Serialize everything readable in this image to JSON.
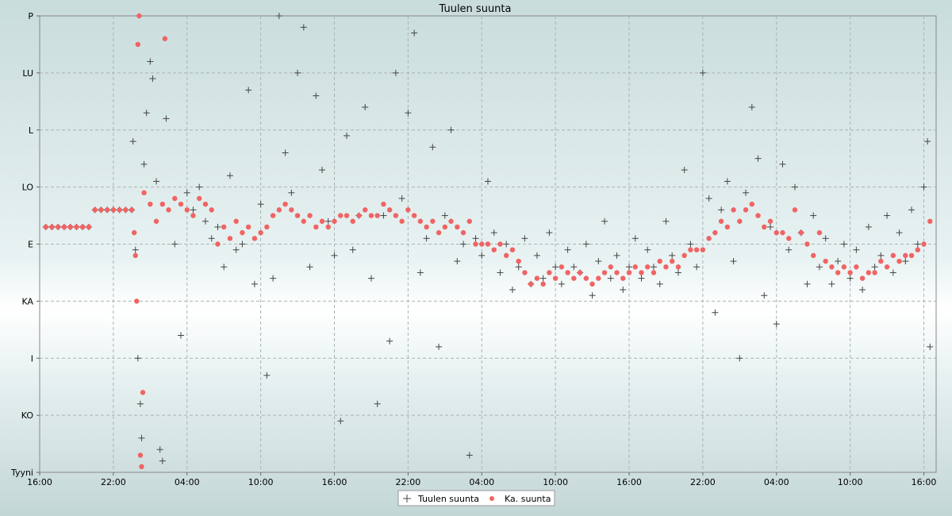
{
  "chart_data": {
    "type": "scatter",
    "title": "Tuulen suunta",
    "xlabel": "",
    "ylabel": "",
    "x_unit": "hours since first tick (16:00)",
    "xlim": [
      0,
      73
    ],
    "x_ticks": [
      {
        "x": 0,
        "label": "16:00"
      },
      {
        "x": 6,
        "label": "22:00"
      },
      {
        "x": 12,
        "label": "04:00"
      },
      {
        "x": 18,
        "label": "10:00"
      },
      {
        "x": 24,
        "label": "16:00"
      },
      {
        "x": 30,
        "label": "22:00"
      },
      {
        "x": 36,
        "label": "04:00"
      },
      {
        "x": 42,
        "label": "10:00"
      },
      {
        "x": 48,
        "label": "16:00"
      },
      {
        "x": 54,
        "label": "22:00"
      },
      {
        "x": 60,
        "label": "04:00"
      },
      {
        "x": 66,
        "label": "10:00"
      },
      {
        "x": 72,
        "label": "16:00"
      }
    ],
    "ylim": [
      0,
      8
    ],
    "y_ticks": [
      {
        "y": 0,
        "label": "Tyyni"
      },
      {
        "y": 1,
        "label": "KO"
      },
      {
        "y": 2,
        "label": "I"
      },
      {
        "y": 3,
        "label": "KA"
      },
      {
        "y": 4,
        "label": "E"
      },
      {
        "y": 5,
        "label": "LO"
      },
      {
        "y": 6,
        "label": "L"
      },
      {
        "y": 7,
        "label": "LU"
      },
      {
        "y": 8,
        "label": "P"
      }
    ],
    "grid": true,
    "legend_position": "bottom-center",
    "series": [
      {
        "name": "Tuulen suunta",
        "marker": "plus",
        "color": "#444444",
        "points": [
          [
            0.5,
            4.3
          ],
          [
            1.0,
            4.3
          ],
          [
            1.5,
            4.3
          ],
          [
            2.0,
            4.3
          ],
          [
            2.5,
            4.3
          ],
          [
            3.0,
            4.3
          ],
          [
            3.5,
            4.3
          ],
          [
            4.0,
            4.3
          ],
          [
            4.5,
            4.6
          ],
          [
            5.0,
            4.6
          ],
          [
            5.5,
            4.6
          ],
          [
            6.0,
            4.6
          ],
          [
            6.5,
            4.6
          ],
          [
            7.0,
            4.6
          ],
          [
            7.5,
            4.6
          ],
          [
            7.6,
            5.8
          ],
          [
            7.8,
            3.9
          ],
          [
            8.0,
            2.0
          ],
          [
            8.2,
            1.2
          ],
          [
            8.3,
            0.6
          ],
          [
            8.5,
            5.4
          ],
          [
            8.7,
            6.3
          ],
          [
            9.0,
            7.2
          ],
          [
            9.2,
            6.9
          ],
          [
            9.5,
            5.1
          ],
          [
            9.8,
            0.4
          ],
          [
            10.0,
            0.2
          ],
          [
            10.3,
            6.2
          ],
          [
            11.0,
            4.0
          ],
          [
            11.5,
            2.4
          ],
          [
            12.0,
            4.9
          ],
          [
            12.5,
            4.6
          ],
          [
            13.0,
            5.0
          ],
          [
            13.5,
            4.4
          ],
          [
            14.0,
            4.1
          ],
          [
            14.5,
            4.3
          ],
          [
            15.0,
            3.6
          ],
          [
            15.5,
            5.2
          ],
          [
            16.0,
            3.9
          ],
          [
            16.5,
            4.0
          ],
          [
            17.0,
            6.7
          ],
          [
            17.5,
            3.3
          ],
          [
            18.0,
            4.7
          ],
          [
            18.5,
            1.7
          ],
          [
            19.0,
            3.4
          ],
          [
            19.5,
            8.0
          ],
          [
            20.0,
            5.6
          ],
          [
            20.5,
            4.9
          ],
          [
            21.0,
            7.0
          ],
          [
            21.5,
            7.8
          ],
          [
            22.0,
            3.6
          ],
          [
            22.5,
            6.6
          ],
          [
            23.0,
            5.3
          ],
          [
            23.5,
            4.4
          ],
          [
            24.0,
            3.8
          ],
          [
            24.5,
            0.9
          ],
          [
            25.0,
            5.9
          ],
          [
            25.5,
            3.9
          ],
          [
            26.0,
            4.5
          ],
          [
            26.5,
            6.4
          ],
          [
            27.0,
            3.4
          ],
          [
            27.5,
            1.2
          ],
          [
            28.0,
            4.5
          ],
          [
            28.5,
            2.3
          ],
          [
            29.0,
            7.0
          ],
          [
            29.5,
            4.8
          ],
          [
            30.0,
            6.3
          ],
          [
            30.5,
            7.7
          ],
          [
            31.0,
            3.5
          ],
          [
            31.5,
            4.1
          ],
          [
            32.0,
            5.7
          ],
          [
            32.5,
            2.2
          ],
          [
            33.0,
            4.5
          ],
          [
            33.5,
            6.0
          ],
          [
            34.0,
            3.7
          ],
          [
            34.5,
            4.0
          ],
          [
            35.0,
            0.3
          ],
          [
            35.5,
            4.1
          ],
          [
            36.0,
            3.8
          ],
          [
            36.5,
            5.1
          ],
          [
            37.0,
            4.2
          ],
          [
            37.5,
            3.5
          ],
          [
            38.0,
            4.0
          ],
          [
            38.5,
            3.2
          ],
          [
            39.0,
            3.6
          ],
          [
            39.5,
            4.1
          ],
          [
            40.0,
            3.3
          ],
          [
            40.5,
            3.8
          ],
          [
            41.0,
            3.4
          ],
          [
            41.5,
            4.2
          ],
          [
            42.0,
            3.6
          ],
          [
            42.5,
            3.3
          ],
          [
            43.0,
            3.9
          ],
          [
            43.5,
            3.6
          ],
          [
            44.0,
            3.5
          ],
          [
            44.5,
            4.0
          ],
          [
            45.0,
            3.1
          ],
          [
            45.5,
            3.7
          ],
          [
            46.0,
            4.4
          ],
          [
            46.5,
            3.4
          ],
          [
            47.0,
            3.8
          ],
          [
            47.5,
            3.2
          ],
          [
            48.0,
            3.6
          ],
          [
            48.5,
            4.1
          ],
          [
            49.0,
            3.4
          ],
          [
            49.5,
            3.9
          ],
          [
            50.0,
            3.6
          ],
          [
            50.5,
            3.3
          ],
          [
            51.0,
            4.4
          ],
          [
            51.5,
            3.8
          ],
          [
            52.0,
            3.5
          ],
          [
            52.5,
            5.3
          ],
          [
            53.0,
            4.0
          ],
          [
            53.5,
            3.6
          ],
          [
            54.0,
            7.0
          ],
          [
            54.5,
            4.8
          ],
          [
            55.0,
            2.8
          ],
          [
            55.5,
            4.6
          ],
          [
            56.0,
            5.1
          ],
          [
            56.5,
            3.7
          ],
          [
            57.0,
            2.0
          ],
          [
            57.5,
            4.9
          ],
          [
            58.0,
            6.4
          ],
          [
            58.5,
            5.5
          ],
          [
            59.0,
            3.1
          ],
          [
            59.5,
            4.3
          ],
          [
            60.0,
            2.6
          ],
          [
            60.5,
            5.4
          ],
          [
            61.0,
            3.9
          ],
          [
            61.5,
            5.0
          ],
          [
            62.0,
            4.2
          ],
          [
            62.5,
            3.3
          ],
          [
            63.0,
            4.5
          ],
          [
            63.5,
            3.6
          ],
          [
            64.0,
            4.1
          ],
          [
            64.5,
            3.3
          ],
          [
            65.0,
            3.7
          ],
          [
            65.5,
            4.0
          ],
          [
            66.0,
            3.4
          ],
          [
            66.5,
            3.9
          ],
          [
            67.0,
            3.2
          ],
          [
            67.5,
            4.3
          ],
          [
            68.0,
            3.6
          ],
          [
            68.5,
            3.8
          ],
          [
            69.0,
            4.5
          ],
          [
            69.5,
            3.5
          ],
          [
            70.0,
            4.2
          ],
          [
            70.5,
            3.7
          ],
          [
            71.0,
            4.6
          ],
          [
            71.5,
            4.0
          ],
          [
            72.0,
            5.0
          ],
          [
            72.3,
            5.8
          ],
          [
            72.5,
            2.2
          ]
        ]
      },
      {
        "name": "Ka. suunta",
        "marker": "circle",
        "color": "#f06464",
        "points": [
          [
            0.5,
            4.3
          ],
          [
            1.0,
            4.3
          ],
          [
            1.5,
            4.3
          ],
          [
            2.0,
            4.3
          ],
          [
            2.5,
            4.3
          ],
          [
            3.0,
            4.3
          ],
          [
            3.5,
            4.3
          ],
          [
            4.0,
            4.3
          ],
          [
            4.5,
            4.6
          ],
          [
            5.0,
            4.6
          ],
          [
            5.5,
            4.6
          ],
          [
            6.0,
            4.6
          ],
          [
            6.5,
            4.6
          ],
          [
            7.0,
            4.6
          ],
          [
            7.5,
            4.6
          ],
          [
            7.7,
            4.2
          ],
          [
            7.8,
            3.8
          ],
          [
            7.9,
            3.0
          ],
          [
            8.0,
            7.5
          ],
          [
            8.1,
            8.0
          ],
          [
            8.2,
            0.3
          ],
          [
            8.3,
            0.1
          ],
          [
            8.4,
            1.4
          ],
          [
            8.5,
            4.9
          ],
          [
            9.0,
            4.7
          ],
          [
            9.5,
            4.4
          ],
          [
            10.0,
            4.7
          ],
          [
            10.2,
            7.6
          ],
          [
            10.5,
            4.6
          ],
          [
            11.0,
            4.8
          ],
          [
            11.5,
            4.7
          ],
          [
            12.0,
            4.6
          ],
          [
            12.5,
            4.5
          ],
          [
            13.0,
            4.8
          ],
          [
            13.5,
            4.7
          ],
          [
            14.0,
            4.6
          ],
          [
            14.5,
            4.0
          ],
          [
            15.0,
            4.3
          ],
          [
            15.5,
            4.1
          ],
          [
            16.0,
            4.4
          ],
          [
            16.5,
            4.2
          ],
          [
            17.0,
            4.3
          ],
          [
            17.5,
            4.1
          ],
          [
            18.0,
            4.2
          ],
          [
            18.5,
            4.3
          ],
          [
            19.0,
            4.5
          ],
          [
            19.5,
            4.6
          ],
          [
            20.0,
            4.7
          ],
          [
            20.5,
            4.6
          ],
          [
            21.0,
            4.5
          ],
          [
            21.5,
            4.4
          ],
          [
            22.0,
            4.5
          ],
          [
            22.5,
            4.3
          ],
          [
            23.0,
            4.4
          ],
          [
            23.5,
            4.3
          ],
          [
            24.0,
            4.4
          ],
          [
            24.5,
            4.5
          ],
          [
            25.0,
            4.5
          ],
          [
            25.5,
            4.4
          ],
          [
            26.0,
            4.5
          ],
          [
            26.5,
            4.6
          ],
          [
            27.0,
            4.5
          ],
          [
            27.5,
            4.5
          ],
          [
            28.0,
            4.7
          ],
          [
            28.5,
            4.6
          ],
          [
            29.0,
            4.5
          ],
          [
            29.5,
            4.4
          ],
          [
            30.0,
            4.6
          ],
          [
            30.5,
            4.5
          ],
          [
            31.0,
            4.4
          ],
          [
            31.5,
            4.3
          ],
          [
            32.0,
            4.4
          ],
          [
            32.5,
            4.2
          ],
          [
            33.0,
            4.3
          ],
          [
            33.5,
            4.4
          ],
          [
            34.0,
            4.3
          ],
          [
            34.5,
            4.2
          ],
          [
            35.0,
            4.4
          ],
          [
            35.5,
            4.0
          ],
          [
            36.0,
            4.0
          ],
          [
            36.5,
            4.0
          ],
          [
            37.0,
            3.9
          ],
          [
            37.5,
            4.0
          ],
          [
            38.0,
            3.8
          ],
          [
            38.5,
            3.9
          ],
          [
            39.0,
            3.7
          ],
          [
            39.5,
            3.5
          ],
          [
            40.0,
            3.3
          ],
          [
            40.5,
            3.4
          ],
          [
            41.0,
            3.3
          ],
          [
            41.5,
            3.5
          ],
          [
            42.0,
            3.4
          ],
          [
            42.5,
            3.6
          ],
          [
            43.0,
            3.5
          ],
          [
            43.5,
            3.4
          ],
          [
            44.0,
            3.5
          ],
          [
            44.5,
            3.4
          ],
          [
            45.0,
            3.3
          ],
          [
            45.5,
            3.4
          ],
          [
            46.0,
            3.5
          ],
          [
            46.5,
            3.6
          ],
          [
            47.0,
            3.5
          ],
          [
            47.5,
            3.4
          ],
          [
            48.0,
            3.5
          ],
          [
            48.5,
            3.6
          ],
          [
            49.0,
            3.5
          ],
          [
            49.5,
            3.6
          ],
          [
            50.0,
            3.5
          ],
          [
            50.5,
            3.7
          ],
          [
            51.0,
            3.6
          ],
          [
            51.5,
            3.7
          ],
          [
            52.0,
            3.6
          ],
          [
            52.5,
            3.8
          ],
          [
            53.0,
            3.9
          ],
          [
            53.5,
            3.9
          ],
          [
            54.0,
            3.9
          ],
          [
            54.5,
            4.1
          ],
          [
            55.0,
            4.2
          ],
          [
            55.5,
            4.4
          ],
          [
            56.0,
            4.3
          ],
          [
            56.5,
            4.6
          ],
          [
            57.0,
            4.4
          ],
          [
            57.5,
            4.6
          ],
          [
            58.0,
            4.7
          ],
          [
            58.5,
            4.5
          ],
          [
            59.0,
            4.3
          ],
          [
            59.5,
            4.4
          ],
          [
            60.0,
            4.2
          ],
          [
            60.5,
            4.2
          ],
          [
            61.0,
            4.1
          ],
          [
            61.5,
            4.6
          ],
          [
            62.0,
            4.2
          ],
          [
            62.5,
            4.0
          ],
          [
            63.0,
            3.8
          ],
          [
            63.5,
            4.2
          ],
          [
            64.0,
            3.7
          ],
          [
            64.5,
            3.6
          ],
          [
            65.0,
            3.5
          ],
          [
            65.5,
            3.6
          ],
          [
            66.0,
            3.5
          ],
          [
            66.5,
            3.6
          ],
          [
            67.0,
            3.4
          ],
          [
            67.5,
            3.5
          ],
          [
            68.0,
            3.5
          ],
          [
            68.5,
            3.7
          ],
          [
            69.0,
            3.6
          ],
          [
            69.5,
            3.8
          ],
          [
            70.0,
            3.7
          ],
          [
            70.5,
            3.8
          ],
          [
            71.0,
            3.8
          ],
          [
            71.5,
            3.9
          ],
          [
            72.0,
            4.0
          ],
          [
            72.5,
            4.4
          ]
        ]
      }
    ]
  }
}
